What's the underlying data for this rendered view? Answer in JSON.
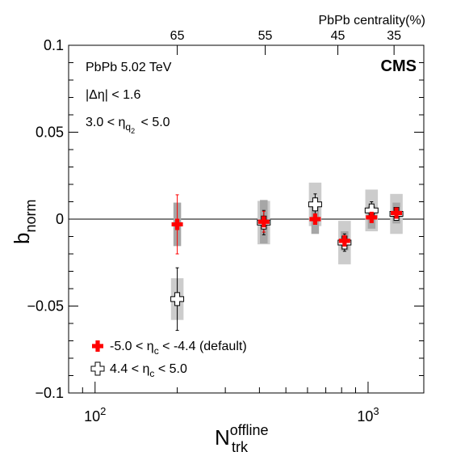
{
  "chart_data": {
    "type": "scatter",
    "title": "",
    "experiment_label": "CMS",
    "annotations": {
      "system": "PbPb 5.02 TeV",
      "deta_prefix": "|Δη| < 1.6",
      "eta_q2_left": "3.0 < η",
      "eta_q2_sub": "q",
      "eta_q2_subsub": "2",
      "eta_q2_right": " < 5.0"
    },
    "xlabel": {
      "main": "N",
      "sup": "offline",
      "sub": "trk"
    },
    "ylabel": {
      "main": "b",
      "sub": "norm"
    },
    "xscale": "log",
    "xlim": [
      80,
      1600
    ],
    "ylim": [
      -0.1,
      0.1
    ],
    "x_ticks": [
      {
        "value": 100,
        "base": "10",
        "exp": "2"
      },
      {
        "value": 1000,
        "base": "10",
        "exp": "3"
      }
    ],
    "y_ticks": [
      {
        "value": 0.1,
        "label": "0.1"
      },
      {
        "value": 0.05,
        "label": "0.05"
      },
      {
        "value": 0,
        "label": "0"
      },
      {
        "value": -0.05,
        "label": "−0.05"
      },
      {
        "value": -0.1,
        "label": "−0.1"
      }
    ],
    "top_axis": {
      "label": "PbPb centrality(%)",
      "ticks": [
        {
          "x": 200,
          "label": "65"
        },
        {
          "x": 420,
          "label": "55"
        },
        {
          "x": 775,
          "label": "45"
        },
        {
          "x": 1245,
          "label": "35"
        }
      ]
    },
    "reference_line": 0,
    "series": [
      {
        "name_pre": "-5.0 < η",
        "name_sub": "c",
        "name_post": " < -4.4 (default)",
        "marker": "filled-cross",
        "color": "#ff0000",
        "syst_color": "#a6a6a6",
        "points": [
          {
            "x": 200,
            "y": -0.003,
            "stat": 0.017,
            "syst": 0.0125
          },
          {
            "x": 415,
            "y": -0.0015,
            "stat": 0.006,
            "syst": 0.0125
          },
          {
            "x": 640,
            "y": 0.0,
            "stat": 0.003,
            "syst": 0.0085
          },
          {
            "x": 820,
            "y": -0.0125,
            "stat": 0.002,
            "syst": 0.0055
          },
          {
            "x": 1030,
            "y": 0.001,
            "stat": 0.002,
            "syst": 0.0065
          },
          {
            "x": 1270,
            "y": 0.0035,
            "stat": 0.0015,
            "syst": 0.006
          }
        ]
      },
      {
        "name_pre": "4.4 < η",
        "name_sub": "c",
        "name_post": " < 5.0",
        "marker": "open-cross",
        "color": "#000000",
        "syst_color": "#cccccc",
        "points": [
          {
            "x": 200,
            "y": -0.046,
            "stat": 0.018,
            "syst": 0.012
          },
          {
            "x": 415,
            "y": -0.002,
            "stat": 0.007,
            "syst": 0.0125
          },
          {
            "x": 640,
            "y": 0.0085,
            "stat": 0.006,
            "syst": 0.0125
          },
          {
            "x": 820,
            "y": -0.0135,
            "stat": 0.005,
            "syst": 0.0125
          },
          {
            "x": 1030,
            "y": 0.005,
            "stat": 0.005,
            "syst": 0.012
          },
          {
            "x": 1270,
            "y": 0.003,
            "stat": 0.0035,
            "syst": 0.0115
          }
        ]
      }
    ],
    "legend": "bottom-left",
    "grid": false
  }
}
